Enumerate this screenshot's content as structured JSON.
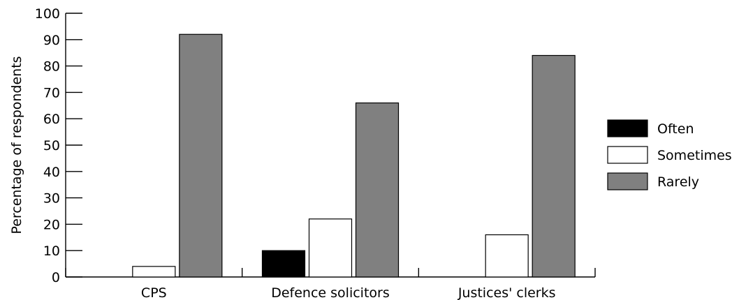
{
  "chart_data": {
    "type": "bar",
    "title": "",
    "xlabel": "",
    "ylabel": "Percentage of respondents",
    "ylim": [
      0,
      100
    ],
    "yticks": [
      0,
      10,
      20,
      30,
      40,
      50,
      60,
      70,
      80,
      90,
      100
    ],
    "categories": [
      "CPS",
      "Defence solicitors",
      "Justices' clerks"
    ],
    "series": [
      {
        "name": "Often",
        "color": "#000000",
        "values": [
          0,
          10,
          0
        ]
      },
      {
        "name": "Sometimes",
        "color": "#ffffff",
        "values": [
          4,
          22,
          16
        ]
      },
      {
        "name": "Rarely",
        "color": "#808080",
        "values": [
          92,
          66,
          84
        ]
      }
    ],
    "legend_position": "right",
    "grid": false
  }
}
